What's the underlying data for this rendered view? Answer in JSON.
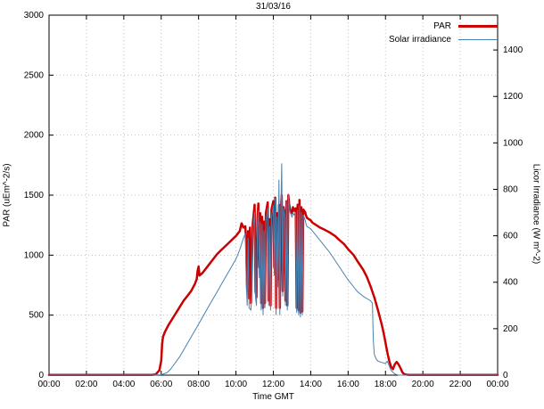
{
  "chart_data": {
    "type": "line",
    "title": "31/03/16",
    "xlabel": "Time GMT",
    "ylabel_left": "PAR (uEm^-2/s)",
    "ylabel_right": "Licor Irradiance (W m^-2)",
    "x_range": [
      0,
      24
    ],
    "y_left_range": [
      0,
      3000
    ],
    "y_right_range": [
      0,
      1550
    ],
    "x_tick_hours": [
      0,
      2,
      4,
      6,
      8,
      10,
      12,
      14,
      16,
      18,
      20,
      22,
      24
    ],
    "x_tick_labels": [
      "00:00",
      "02:00",
      "04:00",
      "06:00",
      "08:00",
      "10:00",
      "12:00",
      "14:00",
      "16:00",
      "18:00",
      "20:00",
      "22:00",
      "00:00"
    ],
    "y_left_ticks": [
      0,
      500,
      1000,
      1500,
      2000,
      2500,
      3000
    ],
    "y_right_ticks": [
      0,
      200,
      400,
      600,
      800,
      1000,
      1200,
      1400
    ],
    "grid": true,
    "grid_color": "#c0c0c0",
    "legend_position": "top-right",
    "series": [
      {
        "name": "PAR",
        "color": "#cc0000",
        "width": 2.5,
        "axis": "left",
        "points": [
          [
            0,
            2
          ],
          [
            1,
            2
          ],
          [
            2,
            2
          ],
          [
            3,
            2
          ],
          [
            4,
            2
          ],
          [
            5,
            2
          ],
          [
            5.5,
            2
          ],
          [
            5.7,
            5
          ],
          [
            5.9,
            40
          ],
          [
            6.0,
            120
          ],
          [
            6.05,
            260
          ],
          [
            6.1,
            320
          ],
          [
            6.2,
            360
          ],
          [
            6.4,
            420
          ],
          [
            6.6,
            470
          ],
          [
            6.8,
            520
          ],
          [
            7.0,
            570
          ],
          [
            7.2,
            620
          ],
          [
            7.4,
            660
          ],
          [
            7.6,
            700
          ],
          [
            7.8,
            760
          ],
          [
            7.9,
            800
          ],
          [
            7.95,
            870
          ],
          [
            8.0,
            905
          ],
          [
            8.05,
            830
          ],
          [
            8.2,
            850
          ],
          [
            8.4,
            890
          ],
          [
            8.6,
            930
          ],
          [
            8.8,
            970
          ],
          [
            9.0,
            1010
          ],
          [
            9.2,
            1040
          ],
          [
            9.4,
            1070
          ],
          [
            9.6,
            1100
          ],
          [
            9.8,
            1130
          ],
          [
            10.0,
            1160
          ],
          [
            10.2,
            1200
          ],
          [
            10.3,
            1265
          ],
          [
            10.4,
            1230
          ],
          [
            10.5,
            1240
          ],
          [
            10.55,
            1100
          ],
          [
            10.6,
            700
          ],
          [
            10.65,
            1200
          ],
          [
            10.7,
            640
          ],
          [
            10.75,
            1230
          ],
          [
            10.8,
            600
          ],
          [
            10.9,
            1260
          ],
          [
            11.0,
            1420
          ],
          [
            11.05,
            700
          ],
          [
            11.1,
            650
          ],
          [
            11.15,
            1300
          ],
          [
            11.2,
            1430
          ],
          [
            11.25,
            900
          ],
          [
            11.3,
            1350
          ],
          [
            11.35,
            600
          ],
          [
            11.4,
            1320
          ],
          [
            11.45,
            560
          ],
          [
            11.5,
            1280
          ],
          [
            11.55,
            600
          ],
          [
            11.6,
            1350
          ],
          [
            11.7,
            1440
          ],
          [
            11.75,
            620
          ],
          [
            11.8,
            1300
          ],
          [
            11.85,
            580
          ],
          [
            11.9,
            1380
          ],
          [
            12.0,
            1450
          ],
          [
            12.05,
            900
          ],
          [
            12.1,
            1480
          ],
          [
            12.15,
            560
          ],
          [
            12.2,
            1350
          ],
          [
            12.25,
            800
          ],
          [
            12.3,
            1420
          ],
          [
            12.35,
            560
          ],
          [
            12.4,
            1380
          ],
          [
            12.45,
            1500
          ],
          [
            12.5,
            700
          ],
          [
            12.55,
            1400
          ],
          [
            12.6,
            1350
          ],
          [
            12.65,
            620
          ],
          [
            12.7,
            1450
          ],
          [
            12.75,
            580
          ],
          [
            12.8,
            1500
          ],
          [
            12.85,
            1420
          ],
          [
            12.9,
            1380
          ],
          [
            13.0,
            1350
          ],
          [
            13.05,
            1400
          ],
          [
            13.1,
            1370
          ],
          [
            13.2,
            1390
          ],
          [
            13.25,
            560
          ],
          [
            13.3,
            1420
          ],
          [
            13.35,
            540
          ],
          [
            13.4,
            1460
          ],
          [
            13.45,
            520
          ],
          [
            13.5,
            1400
          ],
          [
            13.55,
            530
          ],
          [
            13.6,
            1380
          ],
          [
            13.7,
            1360
          ],
          [
            13.75,
            1330
          ],
          [
            13.8,
            1310
          ],
          [
            13.9,
            1300
          ],
          [
            14.0,
            1290
          ],
          [
            14.1,
            1270
          ],
          [
            14.3,
            1250
          ],
          [
            14.5,
            1230
          ],
          [
            14.7,
            1215
          ],
          [
            15.0,
            1190
          ],
          [
            15.3,
            1160
          ],
          [
            15.5,
            1130
          ],
          [
            15.8,
            1090
          ],
          [
            16.0,
            1050
          ],
          [
            16.3,
            1000
          ],
          [
            16.5,
            950
          ],
          [
            16.8,
            880
          ],
          [
            17.0,
            820
          ],
          [
            17.2,
            740
          ],
          [
            17.4,
            650
          ],
          [
            17.6,
            540
          ],
          [
            17.8,
            420
          ],
          [
            17.9,
            350
          ],
          [
            18.0,
            270
          ],
          [
            18.1,
            190
          ],
          [
            18.2,
            120
          ],
          [
            18.3,
            70
          ],
          [
            18.4,
            50
          ],
          [
            18.5,
            90
          ],
          [
            18.6,
            110
          ],
          [
            18.7,
            90
          ],
          [
            18.8,
            60
          ],
          [
            18.9,
            25
          ],
          [
            19.0,
            8
          ],
          [
            19.2,
            2
          ],
          [
            20,
            2
          ],
          [
            21,
            2
          ],
          [
            22,
            2
          ],
          [
            23,
            2
          ],
          [
            24,
            2
          ]
        ]
      },
      {
        "name": "Solar irradiance",
        "color": "#4682b4",
        "width": 1,
        "axis": "right",
        "points": [
          [
            0,
            0
          ],
          [
            2,
            0
          ],
          [
            4,
            0
          ],
          [
            5.5,
            0
          ],
          [
            6.0,
            2
          ],
          [
            6.3,
            10
          ],
          [
            6.5,
            25
          ],
          [
            7.0,
            80
          ],
          [
            7.5,
            150
          ],
          [
            8.0,
            220
          ],
          [
            8.5,
            290
          ],
          [
            9.0,
            360
          ],
          [
            9.5,
            430
          ],
          [
            10.0,
            500
          ],
          [
            10.2,
            540
          ],
          [
            10.4,
            590
          ],
          [
            10.5,
            610
          ],
          [
            10.55,
            400
          ],
          [
            10.6,
            300
          ],
          [
            10.65,
            590
          ],
          [
            10.7,
            290
          ],
          [
            10.8,
            280
          ],
          [
            10.9,
            620
          ],
          [
            11.0,
            700
          ],
          [
            11.05,
            330
          ],
          [
            11.1,
            300
          ],
          [
            11.15,
            640
          ],
          [
            11.2,
            710
          ],
          [
            11.25,
            420
          ],
          [
            11.3,
            660
          ],
          [
            11.35,
            280
          ],
          [
            11.4,
            650
          ],
          [
            11.45,
            260
          ],
          [
            11.5,
            620
          ],
          [
            11.55,
            290
          ],
          [
            11.6,
            660
          ],
          [
            11.7,
            720
          ],
          [
            11.75,
            300
          ],
          [
            11.8,
            640
          ],
          [
            11.85,
            280
          ],
          [
            11.9,
            680
          ],
          [
            12.0,
            730
          ],
          [
            12.05,
            430
          ],
          [
            12.1,
            760
          ],
          [
            12.15,
            260
          ],
          [
            12.2,
            680
          ],
          [
            12.25,
            380
          ],
          [
            12.3,
            840
          ],
          [
            12.35,
            260
          ],
          [
            12.4,
            700
          ],
          [
            12.45,
            910
          ],
          [
            12.5,
            340
          ],
          [
            12.55,
            720
          ],
          [
            12.6,
            680
          ],
          [
            12.65,
            300
          ],
          [
            12.7,
            750
          ],
          [
            12.75,
            280
          ],
          [
            12.8,
            780
          ],
          [
            12.85,
            720
          ],
          [
            12.9,
            700
          ],
          [
            13.0,
            680
          ],
          [
            13.05,
            700
          ],
          [
            13.1,
            690
          ],
          [
            13.2,
            700
          ],
          [
            13.25,
            270
          ],
          [
            13.3,
            710
          ],
          [
            13.35,
            260
          ],
          [
            13.4,
            730
          ],
          [
            13.45,
            250
          ],
          [
            13.5,
            700
          ],
          [
            13.55,
            260
          ],
          [
            13.6,
            690
          ],
          [
            13.7,
            670
          ],
          [
            13.75,
            650
          ],
          [
            13.8,
            640
          ],
          [
            14.0,
            630
          ],
          [
            14.3,
            600
          ],
          [
            14.5,
            580
          ],
          [
            15.0,
            530
          ],
          [
            15.5,
            470
          ],
          [
            16.0,
            410
          ],
          [
            16.3,
            380
          ],
          [
            16.5,
            360
          ],
          [
            16.8,
            340
          ],
          [
            17.0,
            330
          ],
          [
            17.2,
            320
          ],
          [
            17.3,
            310
          ],
          [
            17.35,
            150
          ],
          [
            17.4,
            90
          ],
          [
            17.5,
            70
          ],
          [
            17.6,
            60
          ],
          [
            17.8,
            55
          ],
          [
            18.0,
            50
          ],
          [
            18.1,
            60
          ],
          [
            18.2,
            40
          ],
          [
            18.3,
            20
          ],
          [
            18.5,
            5
          ],
          [
            18.7,
            0
          ],
          [
            19,
            0
          ],
          [
            20,
            0
          ],
          [
            22,
            0
          ],
          [
            24,
            0
          ]
        ]
      }
    ]
  }
}
